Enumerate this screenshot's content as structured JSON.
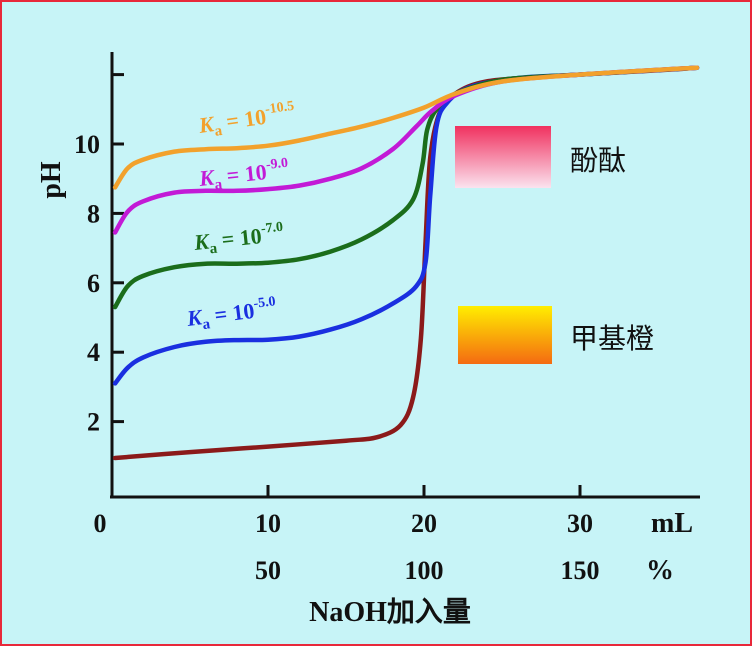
{
  "chart_data": {
    "type": "line",
    "ylabel": "pH",
    "xlabel": "NaOH加入量",
    "x_unit": "mL",
    "percent_unit": "%",
    "xlim": [
      0,
      38
    ],
    "ylim": [
      0,
      12.5
    ],
    "x_ticks": [
      0,
      10,
      20,
      30
    ],
    "percent_ticks": [
      {
        "x": 10,
        "label": "50"
      },
      {
        "x": 20,
        "label": "100"
      },
      {
        "x": 30,
        "label": "150"
      }
    ],
    "y_ticks": [
      2,
      4,
      6,
      8,
      10,
      12
    ],
    "y_tick_labels": [
      "2",
      "4",
      "6",
      "8",
      "10",
      ""
    ],
    "series": [
      {
        "ka_exp": "",
        "ka_prefix": "",
        "color": "#8b1a1a",
        "points": [
          [
            0.2,
            0.95
          ],
          [
            5,
            1.12
          ],
          [
            10,
            1.28
          ],
          [
            15,
            1.45
          ],
          [
            17,
            1.55
          ],
          [
            18.5,
            1.9
          ],
          [
            19.3,
            2.7
          ],
          [
            19.8,
            4.4
          ],
          [
            20.1,
            7.2
          ],
          [
            20.4,
            9.6
          ],
          [
            21,
            10.9
          ],
          [
            22,
            11.45
          ],
          [
            24,
            11.8
          ],
          [
            28,
            11.95
          ],
          [
            32,
            12.05
          ],
          [
            36,
            12.15
          ],
          [
            37.5,
            12.2
          ]
        ]
      },
      {
        "ka_exp": "-5.0",
        "ka_prefix": "K",
        "color": "#1a2fe0",
        "points": [
          [
            0.2,
            3.1
          ],
          [
            1,
            3.55
          ],
          [
            2,
            3.85
          ],
          [
            4,
            4.15
          ],
          [
            6,
            4.3
          ],
          [
            8,
            4.35
          ],
          [
            10,
            4.36
          ],
          [
            12,
            4.45
          ],
          [
            14,
            4.65
          ],
          [
            16,
            4.95
          ],
          [
            18,
            5.4
          ],
          [
            19.5,
            5.9
          ],
          [
            20.1,
            6.6
          ],
          [
            20.4,
            8.5
          ],
          [
            20.8,
            10.5
          ],
          [
            21.5,
            11.2
          ],
          [
            23,
            11.65
          ],
          [
            26,
            11.9
          ],
          [
            30,
            12.0
          ],
          [
            37.5,
            12.2
          ]
        ]
      },
      {
        "ka_exp": "-7.0",
        "ka_prefix": "K",
        "color": "#1b6d1b",
        "points": [
          [
            0.2,
            5.3
          ],
          [
            1,
            5.9
          ],
          [
            2,
            6.2
          ],
          [
            4,
            6.45
          ],
          [
            6,
            6.55
          ],
          [
            8,
            6.55
          ],
          [
            10,
            6.58
          ],
          [
            12,
            6.68
          ],
          [
            14,
            6.9
          ],
          [
            16,
            7.25
          ],
          [
            18,
            7.8
          ],
          [
            19.3,
            8.4
          ],
          [
            19.9,
            9.4
          ],
          [
            20.2,
            10.4
          ],
          [
            20.8,
            11.0
          ],
          [
            22,
            11.45
          ],
          [
            25,
            11.85
          ],
          [
            30,
            12.0
          ],
          [
            37.5,
            12.2
          ]
        ]
      },
      {
        "ka_exp": "-9.0",
        "ka_prefix": "K",
        "color": "#c21ad6",
        "points": [
          [
            0.2,
            7.45
          ],
          [
            1,
            8.05
          ],
          [
            2,
            8.35
          ],
          [
            4,
            8.6
          ],
          [
            6,
            8.65
          ],
          [
            8,
            8.65
          ],
          [
            10,
            8.7
          ],
          [
            12,
            8.8
          ],
          [
            14,
            9.0
          ],
          [
            16,
            9.3
          ],
          [
            18,
            9.85
          ],
          [
            19.5,
            10.5
          ],
          [
            20.5,
            10.95
          ],
          [
            22,
            11.4
          ],
          [
            25,
            11.8
          ],
          [
            30,
            12.0
          ],
          [
            37.5,
            12.2
          ]
        ]
      },
      {
        "ka_exp": "-10.5",
        "ka_prefix": "K",
        "color": "#f2a12c",
        "points": [
          [
            0.2,
            8.75
          ],
          [
            1,
            9.3
          ],
          [
            2,
            9.55
          ],
          [
            4,
            9.78
          ],
          [
            6,
            9.85
          ],
          [
            8,
            9.88
          ],
          [
            10,
            9.95
          ],
          [
            12,
            10.1
          ],
          [
            14,
            10.3
          ],
          [
            16,
            10.5
          ],
          [
            18,
            10.75
          ],
          [
            20,
            11.05
          ],
          [
            22,
            11.45
          ],
          [
            25,
            11.8
          ],
          [
            30,
            12.0
          ],
          [
            37.5,
            12.2
          ]
        ]
      }
    ]
  },
  "series_labels": [
    {
      "prefix": "K",
      "sub": "a",
      "eq": " = 10",
      "exp": "-10.5",
      "color": "#f2a12c"
    },
    {
      "prefix": "K",
      "sub": "a",
      "eq": " = 10",
      "exp": "-9.0",
      "color": "#c21ad6"
    },
    {
      "prefix": "K",
      "sub": "a",
      "eq": " = 10",
      "exp": "-7.0",
      "color": "#1b6d1b"
    },
    {
      "prefix": "K",
      "sub": "a",
      "eq": " = 10",
      "exp": "-5.0",
      "color": "#1a2fe0"
    }
  ],
  "indicators": [
    {
      "name": "酚酞",
      "gradient": [
        "#f0315f",
        "#fbe3ef"
      ]
    },
    {
      "name": "甲基橙",
      "gradient": [
        "#ffee00",
        "#f46a12"
      ]
    }
  ],
  "colors": {
    "frame_border": "#e8283a",
    "background": "#c7f4f7"
  }
}
